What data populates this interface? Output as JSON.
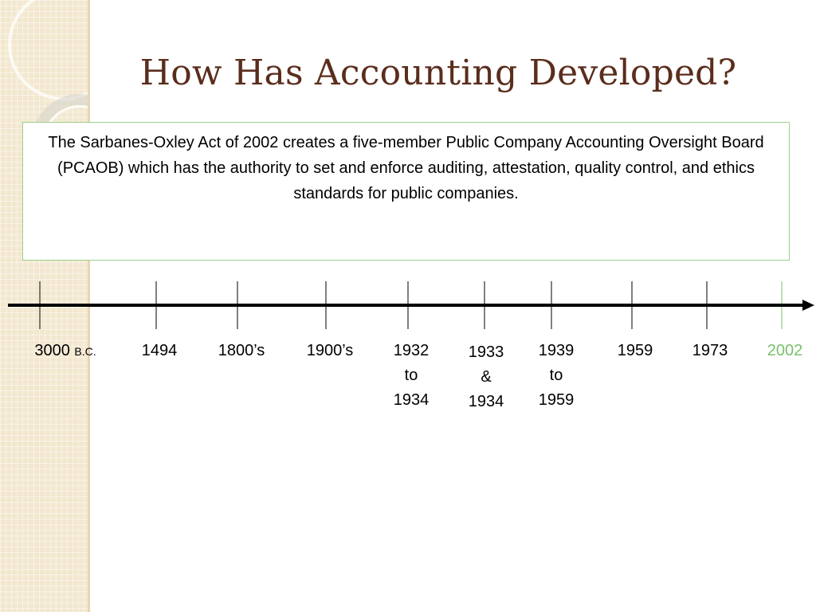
{
  "slide": {
    "title": "How Has Accounting Developed?",
    "body_text": "The Sarbanes-Oxley Act of 2002 creates a five-member Public Company Accounting Oversight Board (PCAOB) which has the authority to set and enforce auditing, attestation, quality control, and ethics standards for public companies."
  },
  "timeline": {
    "labels": [
      {
        "main": "3000",
        "sub": "B.C."
      },
      {
        "main": "1494"
      },
      {
        "main": "1800’s"
      },
      {
        "main": "1900’s"
      },
      {
        "line1": "1932",
        "line2": "to",
        "line3": "1934"
      },
      {
        "line1": "1933",
        "line2": "&",
        "line3": "1934"
      },
      {
        "line1": "1939",
        "line2": "to",
        "line3": "1959"
      },
      {
        "main": "1959"
      },
      {
        "main": "1973"
      },
      {
        "main": "2002"
      }
    ]
  },
  "colors": {
    "title": "#5a2d1c",
    "highlight": "#78c06a",
    "box_border": "#9bd28a",
    "side_band": "#f3e8cf"
  }
}
